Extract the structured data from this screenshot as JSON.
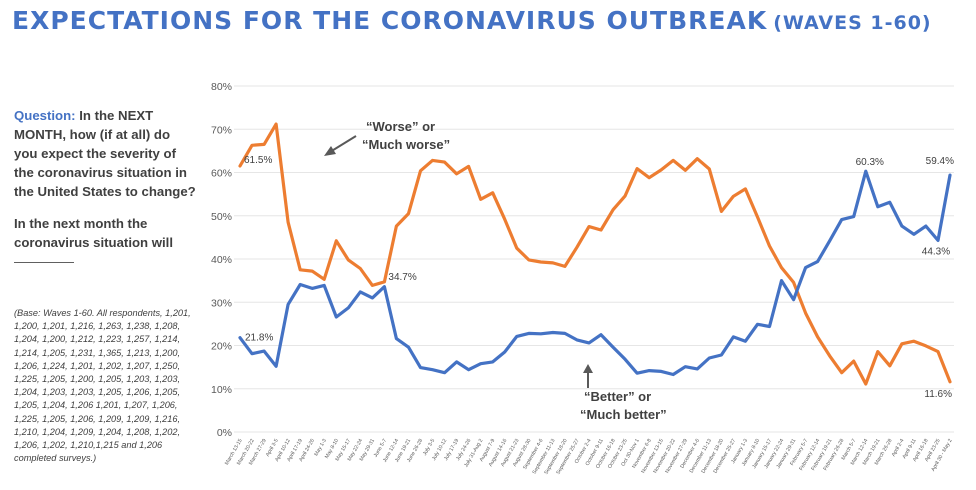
{
  "title": {
    "main": "EXPECTATIONS FOR THE CORONAVIRUS OUTBREAK",
    "sub": "(WAVES 1-60)"
  },
  "question": {
    "label": "Question:",
    "text": "In the NEXT MONTH, how (if at all) do you expect the severity of the coronavirus situation in the United States to change?",
    "prompt": "In the next month the coronavirus situation will"
  },
  "base_note": "(Base: Waves 1-60. All respondents, 1,201, 1,200, 1,201, 1,216, 1,263, 1,238, 1,208, 1,204, 1,200, 1,212, 1,223, 1,257, 1,214, 1,214, 1,205, 1,231, 1,365, 1,213, 1,200, 1,206, 1,224, 1,201, 1,202, 1,207, 1,250, 1,225, 1,205, 1,200, 1,205, 1,203, 1,203, 1,204, 1,203, 1,203, 1,205, 1,206, 1,205, 1,205, 1,204, 1,206 1,201, 1,207, 1,206, 1,225, 1,205, 1,206, 1,209, 1,209, 1,216, 1,210, 1,204, 1,209, 1,204, 1,208, 1,202, 1,206, 1,202, 1,210,1,215 and 1,206 completed surveys.)",
  "chart_data": {
    "type": "line",
    "ylim": [
      0,
      80
    ],
    "y_ticks": [
      "0%",
      "10%",
      "20%",
      "30%",
      "40%",
      "50%",
      "60%",
      "70%",
      "80%"
    ],
    "grid": true,
    "categories": [
      "March 13-15",
      "March 20-22",
      "March 27-29",
      "April 3-5",
      "April 10-12",
      "April 17-19",
      "April 24-26",
      "May 1-3",
      "May 8-10",
      "May 15-17",
      "May 22-24",
      "May 29-31",
      "June 5-7",
      "June 12-14",
      "June 19-21",
      "June 26-28",
      "July 3-5",
      "July 10-12",
      "July 17-19",
      "July 24-26",
      "July 31-Aug 2",
      "August 7-9",
      "August 14-16",
      "August 21-23",
      "August 28-30",
      "September 4-6",
      "September 11-13",
      "September 18-20",
      "September 25-27",
      "October 2-4",
      "October 9-11",
      "October 16-18",
      "October 23-25",
      "Oct 30-Nov 1",
      "November 6-8",
      "November 13-15",
      "November 20-22",
      "November 27-29",
      "December 4-6",
      "December 11-13",
      "December 18-20",
      "December 25-27",
      "January 1-3",
      "January 8-10",
      "January 15-17",
      "January 22-24",
      "January 29-31",
      "February 5-7",
      "February 12-14",
      "February 19-21",
      "February 26-28",
      "March 5-7",
      "March 12-14",
      "March 19-21",
      "March 26-28",
      "April 2-4",
      "April 9-11",
      "April 16-18",
      "April 23-25",
      "April 30 - May 2"
    ],
    "series": [
      {
        "name": "Worse or Much worse",
        "color": "#ed7d31",
        "values": [
          61.5,
          66.3,
          66.5,
          71.2,
          48.5,
          37.5,
          37.2,
          35.3,
          44.2,
          39.8,
          37.8,
          33.9,
          34.7,
          47.6,
          50.5,
          60.4,
          62.8,
          62.4,
          59.7,
          61.4,
          53.8,
          55.3,
          49.2,
          42.5,
          39.8,
          39.3,
          39.1,
          38.3,
          42.7,
          47.5,
          46.7,
          51.4,
          54.6,
          60.9,
          58.8,
          60.6,
          62.8,
          60.5,
          63.2,
          60.8,
          51.0,
          54.5,
          56.2,
          49.7,
          43.0,
          38.0,
          34.6,
          27.5,
          22.0,
          17.6,
          13.7,
          16.4,
          11.1,
          18.6,
          15.3,
          20.4,
          21.0,
          19.9,
          18.6,
          11.6
        ]
      },
      {
        "name": "Better or Much better",
        "color": "#4472c4",
        "values": [
          21.8,
          18.1,
          18.7,
          15.2,
          29.5,
          34.1,
          33.2,
          33.9,
          26.6,
          28.7,
          32.4,
          31.0,
          33.6,
          21.6,
          19.6,
          14.9,
          14.4,
          13.7,
          16.2,
          14.4,
          15.8,
          16.2,
          18.5,
          22.1,
          22.8,
          22.7,
          23.0,
          22.8,
          21.3,
          20.6,
          22.5,
          19.6,
          16.8,
          13.6,
          14.2,
          14.0,
          13.3,
          15.1,
          14.6,
          17.1,
          17.8,
          22.0,
          21.0,
          24.9,
          24.4,
          35.0,
          30.6,
          38.0,
          39.4,
          44.2,
          49.1,
          49.8,
          60.3,
          52.1,
          53.1,
          47.6,
          45.7,
          47.6,
          44.3,
          59.4
        ]
      }
    ],
    "data_labels": {
      "worse_first": "61.5%",
      "worse_mid": "34.7%",
      "worse_last": "11.6%",
      "better_first": "21.8%",
      "better_peak": "60.3%",
      "better_low": "44.3%",
      "better_last": "59.4%"
    },
    "annotations": {
      "worse_line1": "“Worse” or",
      "worse_line2": "“Much worse”",
      "better_line1": "“Better” or",
      "better_line2": "“Much better”"
    }
  }
}
